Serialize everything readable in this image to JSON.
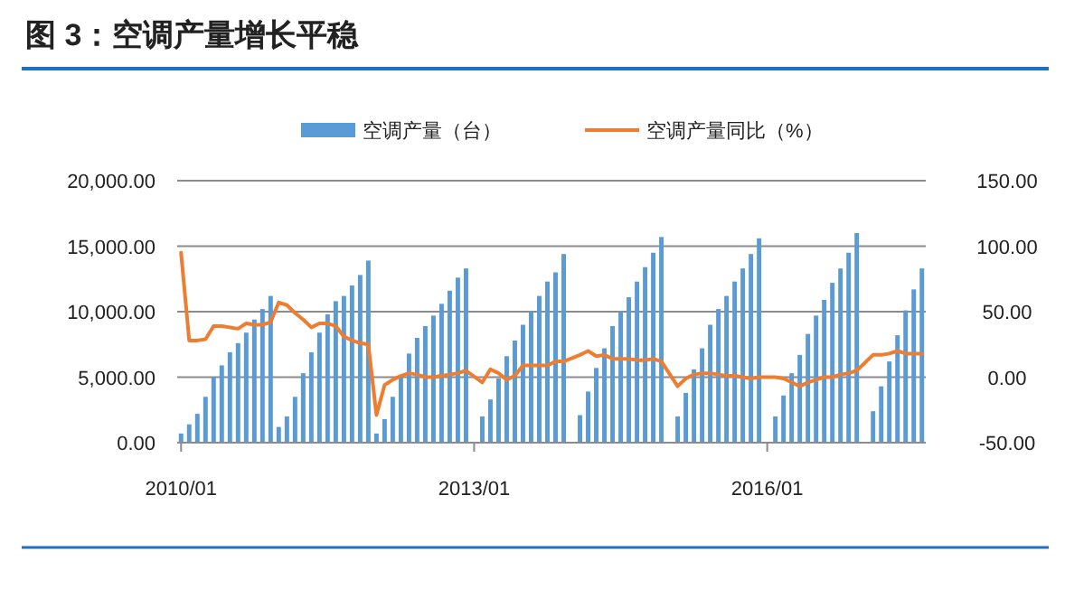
{
  "chart_data": {
    "type": "bar",
    "title": "图 3：空调产量增长平稳",
    "categories": [
      "2010/01",
      null,
      null,
      null,
      null,
      null,
      null,
      null,
      null,
      null,
      null,
      null,
      null,
      null,
      null,
      null,
      null,
      null,
      null,
      null,
      null,
      null,
      null,
      null,
      null,
      null,
      null,
      null,
      null,
      null,
      null,
      null,
      null,
      null,
      null,
      null,
      "2013/01",
      null,
      null,
      null,
      null,
      null,
      null,
      null,
      null,
      null,
      null,
      null,
      null,
      null,
      null,
      null,
      null,
      null,
      null,
      null,
      null,
      null,
      null,
      null,
      null,
      null,
      null,
      null,
      null,
      null,
      null,
      null,
      null,
      null,
      null,
      null,
      "2016/01",
      null,
      null,
      null,
      null,
      null,
      null,
      null,
      null,
      null,
      null,
      null,
      null,
      null,
      null,
      null,
      null,
      null,
      null,
      null
    ],
    "series": [
      {
        "name": "空调产量（台）",
        "color": "#5b9bd5",
        "values": [
          700,
          1400,
          2200,
          3500,
          5000,
          5900,
          6900,
          7600,
          8400,
          9400,
          10200,
          11200,
          1200,
          2000,
          3500,
          5300,
          6900,
          8400,
          9800,
          10800,
          11200,
          12000,
          12800,
          13900,
          700,
          1800,
          3500,
          5000,
          6800,
          8000,
          8900,
          9700,
          10600,
          11600,
          12600,
          13300,
          null,
          2000,
          3300,
          4900,
          6600,
          7800,
          9000,
          10000,
          11200,
          12300,
          13000,
          14400,
          null,
          2100,
          3900,
          5700,
          7200,
          8900,
          10000,
          11100,
          12300,
          13400,
          14500,
          15700,
          null,
          2000,
          3800,
          5600,
          7200,
          9000,
          10200,
          11200,
          12300,
          13300,
          14400,
          15600,
          null,
          2000,
          3600,
          5300,
          6700,
          8300,
          9700,
          10900,
          12200,
          13300,
          14500,
          16000,
          null,
          2400,
          4300,
          6200,
          8200,
          10100,
          11700,
          13300
        ]
      },
      {
        "name": "空调产量同比（%）",
        "type": "line",
        "axis": "y2",
        "color": "#ed7d31",
        "values": [
          95,
          28,
          28,
          29,
          39,
          39,
          38,
          37,
          41,
          40,
          40,
          42,
          57,
          55,
          49,
          44,
          38,
          41,
          41,
          39,
          31,
          28,
          26,
          25,
          -29,
          -6,
          -2,
          1,
          3,
          2,
          0,
          0,
          1,
          2,
          3,
          5,
          null,
          -4,
          6,
          3,
          -2,
          1,
          9,
          9,
          9,
          9,
          12,
          12,
          null,
          17,
          20,
          16,
          17,
          14,
          14,
          14,
          13,
          13,
          14,
          12,
          null,
          -7,
          -1,
          2,
          3,
          3,
          2,
          1,
          1,
          0,
          -1,
          0,
          null,
          0,
          -1,
          -4,
          -7,
          -4,
          -2,
          0,
          0,
          2,
          3,
          5,
          null,
          17,
          17,
          18,
          20,
          18,
          18,
          18
        ]
      }
    ],
    "ylim": [
      0,
      20000
    ],
    "yticks": [
      {
        "value": 0,
        "label": "0.00"
      },
      {
        "value": 5000,
        "label": "5,000.00"
      },
      {
        "value": 10000,
        "label": "10,000.00"
      },
      {
        "value": 15000,
        "label": "15,000.00"
      },
      {
        "value": 20000,
        "label": "20,000.00"
      }
    ],
    "y2lim": [
      -50,
      150
    ],
    "y2ticks": [
      {
        "value": -50,
        "label": "-50.00"
      },
      {
        "value": 0,
        "label": "0.00"
      },
      {
        "value": 50,
        "label": "50.00"
      },
      {
        "value": 100,
        "label": "100.00"
      },
      {
        "value": 150,
        "label": "150.00"
      }
    ],
    "grid": "y",
    "legend": "top"
  }
}
